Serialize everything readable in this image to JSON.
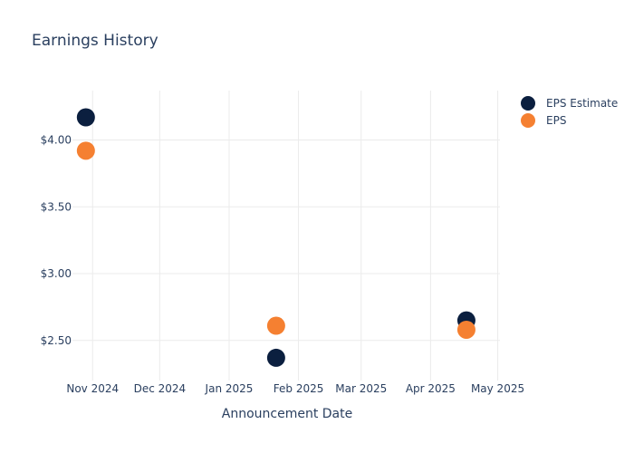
{
  "chart_data": {
    "type": "scatter",
    "title": "Earnings History",
    "xlabel": "Announcement Date",
    "ylabel": "",
    "x_ticks": [
      "Nov 2024",
      "Dec 2024",
      "Jan 2025",
      "Feb 2025",
      "Mar 2025",
      "Apr 2025",
      "May 2025"
    ],
    "y_ticks": [
      "$2.50",
      "$3.00",
      "$3.50",
      "$4.00"
    ],
    "x_tick_dates": [
      "2024-11-01",
      "2024-12-01",
      "2025-01-01",
      "2025-02-01",
      "2025-03-01",
      "2025-04-01",
      "2025-05-01"
    ],
    "y_tick_values": [
      2.5,
      3.0,
      3.5,
      4.0
    ],
    "xlim": [
      "2024-10-23",
      "2025-05-02"
    ],
    "ylim": [
      2.2,
      4.37
    ],
    "grid": true,
    "legend_position": "top-right",
    "series": [
      {
        "name": "EPS Estimate",
        "color": "#0b1f3f",
        "points": [
          {
            "x": "2024-10-29",
            "y": 4.17
          },
          {
            "x": "2025-01-22",
            "y": 2.37
          },
          {
            "x": "2025-04-17",
            "y": 2.65
          }
        ]
      },
      {
        "name": "EPS",
        "color": "#f58031",
        "points": [
          {
            "x": "2024-10-29",
            "y": 3.92
          },
          {
            "x": "2025-01-22",
            "y": 2.61
          },
          {
            "x": "2025-04-17",
            "y": 2.58
          }
        ]
      }
    ]
  }
}
